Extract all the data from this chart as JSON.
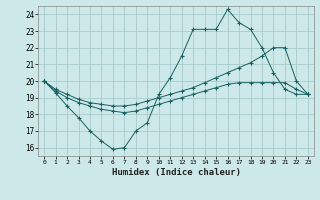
{
  "xlabel": "Humidex (Indice chaleur)",
  "background_color": "#cce8e8",
  "grid_color": "#aacccc",
  "line_color": "#1a6060",
  "xlim": [
    -0.5,
    23.5
  ],
  "ylim": [
    15.5,
    24.5
  ],
  "xticks": [
    0,
    1,
    2,
    3,
    4,
    5,
    6,
    7,
    8,
    9,
    10,
    11,
    12,
    13,
    14,
    15,
    16,
    17,
    18,
    19,
    20,
    21,
    22,
    23
  ],
  "yticks": [
    16,
    17,
    18,
    19,
    20,
    21,
    22,
    23,
    24
  ],
  "line_a_x": [
    0,
    1,
    2,
    3,
    4,
    5,
    6,
    7,
    8,
    9,
    10,
    11,
    12,
    13,
    14,
    15,
    16,
    17,
    18,
    19,
    20,
    21,
    22,
    23
  ],
  "line_a_y": [
    20.0,
    19.3,
    18.5,
    17.8,
    17.0,
    16.4,
    15.9,
    16.0,
    17.0,
    17.5,
    19.2,
    20.2,
    21.5,
    23.1,
    23.1,
    23.1,
    24.3,
    23.5,
    23.1,
    22.0,
    20.5,
    19.5,
    19.2,
    19.2
  ],
  "line_b_x": [
    0,
    1,
    2,
    3,
    4,
    5,
    6,
    7,
    8,
    9,
    10,
    11,
    12,
    13,
    14,
    15,
    16,
    17,
    18,
    19,
    20,
    21,
    22,
    23
  ],
  "line_b_y": [
    20.0,
    19.5,
    19.2,
    18.9,
    18.7,
    18.6,
    18.5,
    18.5,
    18.6,
    18.8,
    19.0,
    19.2,
    19.4,
    19.6,
    19.9,
    20.2,
    20.5,
    20.8,
    21.1,
    21.5,
    22.0,
    22.0,
    20.0,
    19.2
  ],
  "line_c_x": [
    0,
    1,
    2,
    3,
    4,
    5,
    6,
    7,
    8,
    9,
    10,
    11,
    12,
    13,
    14,
    15,
    16,
    17,
    18,
    19,
    20,
    21,
    22,
    23
  ],
  "line_c_y": [
    20.0,
    19.4,
    19.0,
    18.7,
    18.5,
    18.3,
    18.2,
    18.1,
    18.2,
    18.4,
    18.6,
    18.8,
    19.0,
    19.2,
    19.4,
    19.6,
    19.8,
    19.9,
    19.9,
    19.9,
    19.9,
    19.9,
    19.5,
    19.2
  ]
}
